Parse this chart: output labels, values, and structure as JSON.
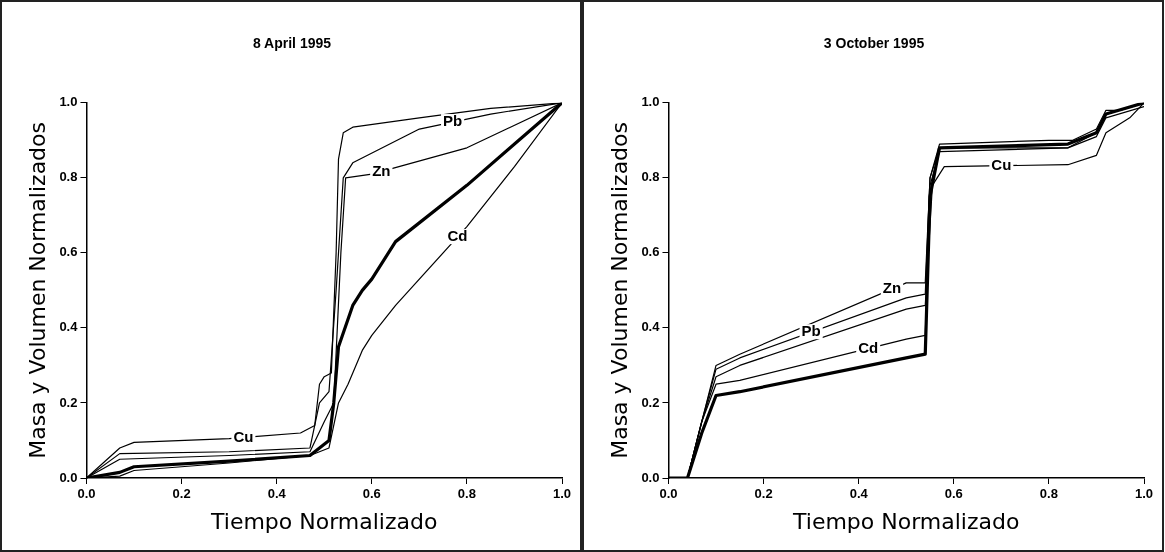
{
  "chart_data": [
    {
      "type": "line",
      "title": "8 April 1995",
      "xlabel": "Tiempo Normalizado",
      "ylabel": "Masa y Volumen Normalizados",
      "xlim": [
        0,
        1
      ],
      "ylim": [
        0,
        1
      ],
      "grid": false,
      "legend": false,
      "marker": "none",
      "line_style": "solid",
      "xticks": [
        {
          "value": 0,
          "label": "0.0"
        },
        {
          "value": 0.2,
          "label": "0.2"
        },
        {
          "value": 0.4,
          "label": "0.4"
        },
        {
          "value": 0.6,
          "label": "0.6"
        },
        {
          "value": 0.8,
          "label": "0.8"
        },
        {
          "value": 1,
          "label": "1.0"
        }
      ],
      "yticks": [
        {
          "value": 0,
          "label": "0.0"
        },
        {
          "value": 0.2,
          "label": "0.2"
        },
        {
          "value": 0.4,
          "label": "0.4"
        },
        {
          "value": 0.6,
          "label": "0.6"
        },
        {
          "value": 0.8,
          "label": "0.8"
        },
        {
          "value": 1,
          "label": "1.0"
        }
      ],
      "series": [
        {
          "name": "Cu",
          "color": "#000000",
          "x": [
            0,
            0.07,
            0.1,
            0.3,
            0.45,
            0.48,
            0.49,
            0.5,
            0.515,
            0.525,
            0.53,
            0.54,
            0.56,
            0.7,
            0.85,
            1
          ],
          "values": [
            0,
            0.08,
            0.095,
            0.105,
            0.12,
            0.14,
            0.25,
            0.27,
            0.28,
            0.6,
            0.85,
            0.92,
            0.935,
            0.96,
            0.985,
            1
          ]
        },
        {
          "name": "Pb",
          "color": "#000000",
          "x": [
            0,
            0.07,
            0.3,
            0.47,
            0.49,
            0.51,
            0.525,
            0.54,
            0.56,
            0.7,
            0.85,
            1
          ],
          "values": [
            0,
            0.065,
            0.07,
            0.08,
            0.2,
            0.23,
            0.5,
            0.8,
            0.84,
            0.93,
            0.97,
            1
          ]
        },
        {
          "name": "Zn",
          "color": "#000000",
          "x": [
            0,
            0.07,
            0.3,
            0.47,
            0.5,
            0.52,
            0.535,
            0.545,
            0.6,
            0.8,
            1
          ],
          "values": [
            0,
            0.05,
            0.06,
            0.07,
            0.15,
            0.2,
            0.6,
            0.8,
            0.81,
            0.88,
            1
          ]
        },
        {
          "color": "#000000",
          "x": [
            0,
            0.07,
            0.1,
            0.3,
            0.47,
            0.51,
            0.52,
            0.53,
            0.56,
            0.58,
            0.6,
            0.65,
            0.8,
            1
          ],
          "values": [
            0,
            0.015,
            0.03,
            0.045,
            0.06,
            0.1,
            0.2,
            0.35,
            0.46,
            0.5,
            0.53,
            0.63,
            0.78,
            1
          ]
        },
        {
          "name": "Cd",
          "color": "#000000",
          "x": [
            0,
            0.07,
            0.1,
            0.3,
            0.47,
            0.51,
            0.53,
            0.55,
            0.58,
            0.6,
            0.65,
            0.8,
            0.9,
            1
          ],
          "values": [
            0,
            0.005,
            0.02,
            0.04,
            0.06,
            0.08,
            0.2,
            0.25,
            0.34,
            0.38,
            0.46,
            0.67,
            0.83,
            1
          ]
        }
      ]
    },
    {
      "type": "line",
      "title": "3 October 1995",
      "xlabel": "Tiempo Normalizado",
      "ylabel": "Masa y Volumen Normalizados",
      "xlim": [
        0,
        1
      ],
      "ylim": [
        0,
        1
      ],
      "grid": false,
      "legend": false,
      "marker": "none",
      "line_style": "solid",
      "xticks": [
        {
          "value": 0,
          "label": "0.0"
        },
        {
          "value": 0.2,
          "label": "0.2"
        },
        {
          "value": 0.4,
          "label": "0.4"
        },
        {
          "value": 0.6,
          "label": "0.6"
        },
        {
          "value": 0.8,
          "label": "0.8"
        },
        {
          "value": 1,
          "label": "1.0"
        }
      ],
      "yticks": [
        {
          "value": 0,
          "label": "0.0"
        },
        {
          "value": 0.2,
          "label": "0.2"
        },
        {
          "value": 0.4,
          "label": "0.4"
        },
        {
          "value": 0.6,
          "label": "0.6"
        },
        {
          "value": 0.8,
          "label": "0.8"
        },
        {
          "value": 1,
          "label": "1.0"
        }
      ],
      "series": [
        {
          "name": "Zn",
          "color": "#000000",
          "x": [
            0,
            0.04,
            0.06,
            0.1,
            0.15,
            0.5,
            0.54,
            0.55,
            0.57,
            0.8,
            0.85,
            0.9,
            0.92,
            0.95,
            1
          ],
          "values": [
            0,
            0,
            0.1,
            0.3,
            0.33,
            0.52,
            0.52,
            0.8,
            0.89,
            0.9,
            0.9,
            0.93,
            0.98,
            0.98,
            1
          ]
        },
        {
          "name": "Pb",
          "color": "#000000",
          "x": [
            0,
            0.04,
            0.07,
            0.1,
            0.15,
            0.5,
            0.54,
            0.55,
            0.57,
            0.84,
            0.9,
            0.92,
            1
          ],
          "values": [
            0,
            0,
            0.15,
            0.29,
            0.32,
            0.48,
            0.49,
            0.8,
            0.88,
            0.88,
            0.92,
            0.97,
            1
          ]
        },
        {
          "name": "Cd",
          "color": "#000000",
          "x": [
            0,
            0.04,
            0.07,
            0.1,
            0.15,
            0.5,
            0.54,
            0.55,
            0.57,
            0.84,
            0.9,
            0.92,
            1
          ],
          "values": [
            0,
            0,
            0.15,
            0.25,
            0.26,
            0.37,
            0.38,
            0.78,
            0.87,
            0.88,
            0.91,
            0.96,
            0.99
          ]
        },
        {
          "color": "#000000",
          "x": [
            0,
            0.04,
            0.07,
            0.1,
            0.15,
            0.5,
            0.54,
            0.55,
            0.57,
            0.84,
            0.9,
            0.92,
            1
          ],
          "values": [
            0,
            0,
            0.12,
            0.22,
            0.23,
            0.32,
            0.33,
            0.75,
            0.88,
            0.89,
            0.92,
            0.97,
            1
          ]
        },
        {
          "name": "Cu",
          "color": "#000000",
          "x": [
            0,
            0.04,
            0.07,
            0.1,
            0.15,
            0.5,
            0.54,
            0.555,
            0.58,
            0.84,
            0.9,
            0.92,
            0.97,
            1
          ],
          "values": [
            0,
            0,
            0.15,
            0.27,
            0.3,
            0.45,
            0.46,
            0.78,
            0.83,
            0.835,
            0.86,
            0.92,
            0.96,
            1
          ]
        }
      ]
    }
  ]
}
